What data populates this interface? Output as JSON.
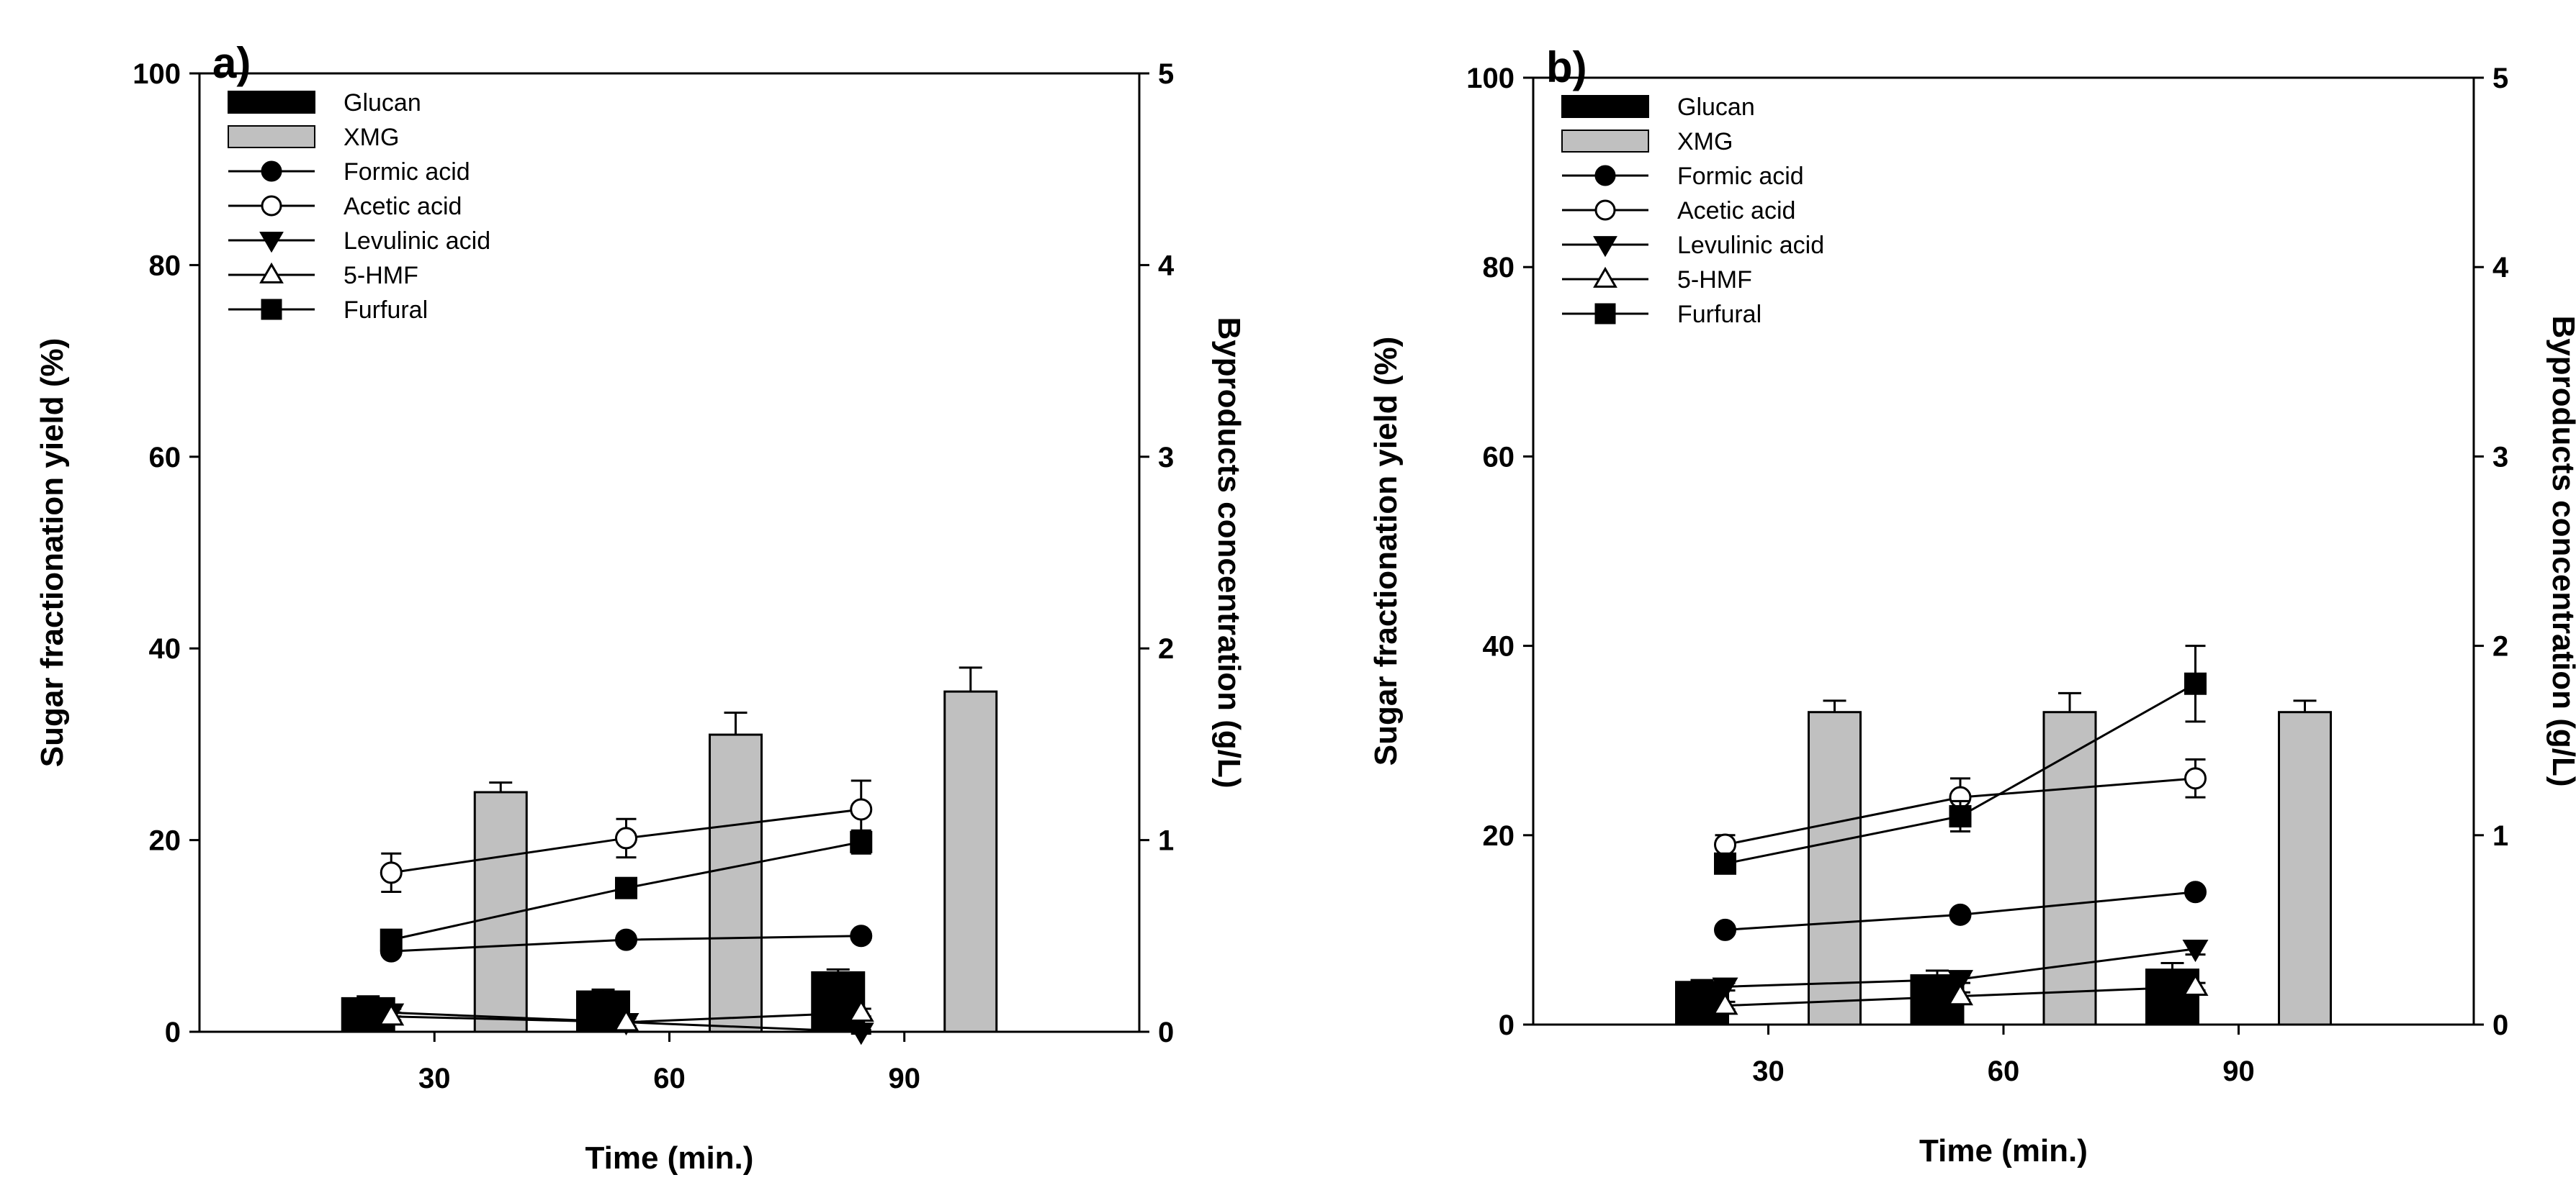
{
  "chart_data": [
    {
      "type": "bar",
      "panel_label": "a)",
      "xlabel": "Time (min.)",
      "ylabel": "Sugar fractionation yield (%)",
      "y2label": "Byproducts concentration (g/L)",
      "categories": [
        "30",
        "60",
        "90"
      ],
      "ylim": [
        0,
        100
      ],
      "yticks": [
        "0",
        "20",
        "40",
        "60",
        "80",
        "100"
      ],
      "y2lim": [
        0,
        5
      ],
      "y2ticks": [
        "0",
        "1",
        "2",
        "3",
        "4",
        "5"
      ],
      "legend_position": "top-left",
      "bar_series": [
        {
          "name": "Glucan",
          "fill": "#000000",
          "values": [
            3.5,
            4.2,
            6.2
          ],
          "errors": [
            0.2,
            0.2,
            0.3
          ]
        },
        {
          "name": "XMG",
          "fill": "#c0c0c0",
          "values": [
            25,
            31,
            35.5
          ],
          "errors": [
            1.0,
            2.3,
            2.5
          ]
        }
      ],
      "line_series": [
        {
          "name": "Formic acid",
          "marker": "circle",
          "filled": true,
          "values": [
            0.42,
            0.48,
            0.5
          ],
          "errors": [
            0.02,
            0.02,
            0.02
          ]
        },
        {
          "name": "Acetic acid",
          "marker": "circle",
          "filled": false,
          "values": [
            0.83,
            1.01,
            1.16
          ],
          "errors": [
            0.1,
            0.1,
            0.15
          ]
        },
        {
          "name": "Levulinic acid",
          "marker": "triangle-down",
          "filled": true,
          "values": [
            0.1,
            0.05,
            0.0
          ],
          "errors": [
            0.02,
            0.02,
            0.01
          ]
        },
        {
          "name": "5-HMF",
          "marker": "triangle-up",
          "filled": false,
          "values": [
            0.08,
            0.05,
            0.1
          ],
          "errors": [
            0.02,
            0.02,
            0.02
          ]
        },
        {
          "name": "Furfural",
          "marker": "square",
          "filled": true,
          "values": [
            0.48,
            0.75,
            0.99
          ],
          "errors": [
            0.03,
            0.03,
            0.06
          ]
        }
      ]
    },
    {
      "type": "bar",
      "panel_label": "b)",
      "xlabel": "Time (min.)",
      "ylabel": "Sugar fractionation yield (%)",
      "y2label": "Byproducts concentration (g/L)",
      "categories": [
        "30",
        "60",
        "90"
      ],
      "ylim": [
        0,
        100
      ],
      "yticks": [
        "0",
        "20",
        "40",
        "60",
        "80",
        "100"
      ],
      "y2lim": [
        0,
        5
      ],
      "y2ticks": [
        "0",
        "1",
        "2",
        "3",
        "4",
        "5"
      ],
      "legend_position": "top-left",
      "bar_series": [
        {
          "name": "Glucan",
          "fill": "#000000",
          "values": [
            4.5,
            5.2,
            5.8
          ],
          "errors": [
            0.2,
            0.5,
            0.7
          ]
        },
        {
          "name": "XMG",
          "fill": "#c0c0c0",
          "values": [
            33,
            33,
            33
          ],
          "errors": [
            1.2,
            2.0,
            1.2
          ]
        }
      ],
      "line_series": [
        {
          "name": "Formic acid",
          "marker": "circle",
          "filled": true,
          "values": [
            0.5,
            0.58,
            0.7
          ],
          "errors": [
            0.02,
            0.02,
            0.02
          ]
        },
        {
          "name": "Acetic acid",
          "marker": "circle",
          "filled": false,
          "values": [
            0.95,
            1.2,
            1.3
          ],
          "errors": [
            0.05,
            0.1,
            0.1
          ]
        },
        {
          "name": "Levulinic acid",
          "marker": "triangle-down",
          "filled": true,
          "values": [
            0.2,
            0.24,
            0.4
          ],
          "errors": [
            0.02,
            0.02,
            0.03
          ]
        },
        {
          "name": "5-HMF",
          "marker": "triangle-up",
          "filled": false,
          "values": [
            0.1,
            0.15,
            0.2
          ],
          "errors": [
            0.02,
            0.02,
            0.02
          ]
        },
        {
          "name": "Furfural",
          "marker": "square",
          "filled": true,
          "values": [
            0.85,
            1.1,
            1.8
          ],
          "errors": [
            0.03,
            0.08,
            0.2
          ]
        }
      ]
    }
  ]
}
